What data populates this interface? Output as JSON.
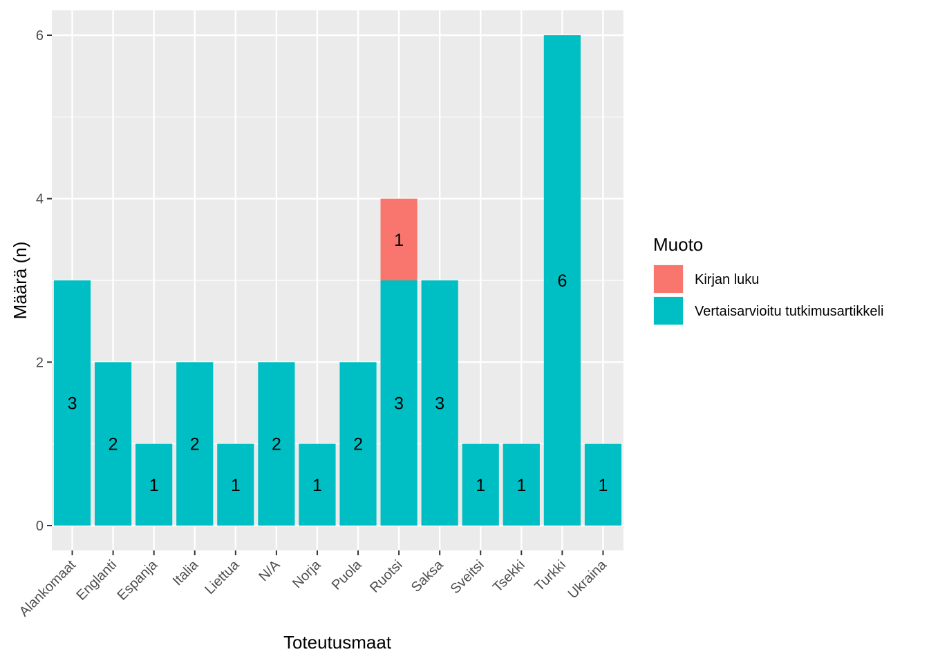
{
  "chart_data": {
    "type": "bar",
    "stacked": true,
    "categories": [
      "Alankomaat",
      "Englanti",
      "Espanja",
      "Italia",
      "Liettua",
      "N/A",
      "Norja",
      "Puola",
      "Ruotsi",
      "Saksa",
      "Sveitsi",
      "Tsekki",
      "Turkki",
      "Ukraina"
    ],
    "series": [
      {
        "name": "Vertaisarvioitu tutkimusartikkeli",
        "color": "#00BFC4",
        "values": [
          3,
          2,
          1,
          2,
          1,
          2,
          1,
          2,
          3,
          3,
          1,
          1,
          6,
          1
        ]
      },
      {
        "name": "Kirjan luku",
        "color": "#F8766D",
        "values": [
          0,
          0,
          0,
          0,
          0,
          0,
          0,
          0,
          1,
          0,
          0,
          0,
          0,
          0
        ]
      }
    ],
    "xlabel": "Toteutusmaat",
    "ylabel": "Määrä (n)",
    "ylim": [
      -0.29,
      6.3
    ],
    "yticks": [
      0,
      2,
      4,
      6
    ],
    "grid": true,
    "legend": {
      "title": "Muoto",
      "position": "right",
      "entries": [
        {
          "label": "Kirjan luku",
          "color": "#F8766D"
        },
        {
          "label": "Vertaisarvioitu tutkimusartikkeli",
          "color": "#00BFC4"
        }
      ]
    }
  }
}
